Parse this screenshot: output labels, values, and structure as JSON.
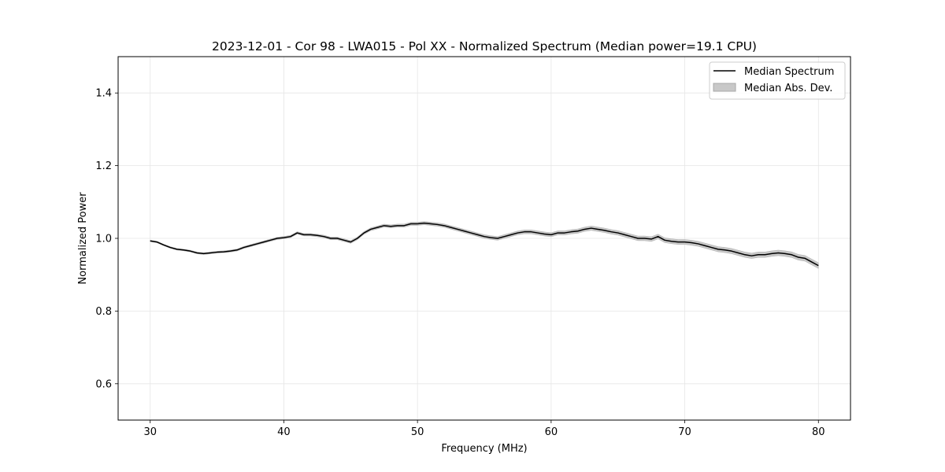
{
  "chart_data": {
    "type": "line",
    "title": "2023-12-01 - Cor 98 - LWA015 - Pol XX - Normalized Spectrum (Median power=19.1 CPU)",
    "xlabel": "Frequency (MHz)",
    "ylabel": "Normalized Power",
    "xlim": [
      27.6,
      82.4
    ],
    "ylim": [
      0.5,
      1.5
    ],
    "xticks": [
      30,
      40,
      50,
      60,
      70,
      80
    ],
    "yticks": [
      0.6,
      0.8,
      1.0,
      1.2,
      1.4
    ],
    "xtick_labels": [
      "30",
      "40",
      "50",
      "60",
      "70",
      "80"
    ],
    "ytick_labels": [
      "0.6",
      "0.8",
      "1.0",
      "1.2",
      "1.4"
    ],
    "grid": true,
    "legend_position": "top-right",
    "legend": [
      "Median Spectrum",
      "Median Abs. Dev."
    ],
    "series": [
      {
        "name": "Median Spectrum",
        "color": "#000000",
        "x": [
          30,
          30.5,
          31,
          31.5,
          32,
          32.5,
          33,
          33.5,
          34,
          34.5,
          35,
          35.5,
          36,
          36.5,
          37,
          37.5,
          38,
          38.5,
          39,
          39.5,
          40,
          40.5,
          41,
          41.5,
          42,
          42.5,
          43,
          43.5,
          44,
          44.5,
          45,
          45.5,
          46,
          46.5,
          47,
          47.5,
          48,
          48.5,
          49,
          49.5,
          50,
          50.5,
          51,
          51.5,
          52,
          52.5,
          53,
          53.5,
          54,
          54.5,
          55,
          55.5,
          56,
          56.5,
          57,
          57.5,
          58,
          58.5,
          59,
          59.5,
          60,
          60.5,
          61,
          61.5,
          62,
          62.5,
          63,
          63.5,
          64,
          64.5,
          65,
          65.5,
          66,
          66.5,
          67,
          67.5,
          68,
          68.5,
          69,
          69.5,
          70,
          70.5,
          71,
          71.5,
          72,
          72.5,
          73,
          73.5,
          74,
          74.5,
          75,
          75.5,
          76,
          76.5,
          77,
          77.5,
          78,
          78.5,
          79,
          79.5,
          80
        ],
        "values": [
          0.993,
          0.99,
          0.982,
          0.975,
          0.97,
          0.968,
          0.965,
          0.96,
          0.958,
          0.96,
          0.962,
          0.963,
          0.965,
          0.968,
          0.975,
          0.98,
          0.985,
          0.99,
          0.995,
          1.0,
          1.002,
          1.005,
          1.015,
          1.01,
          1.01,
          1.008,
          1.005,
          1.0,
          1.0,
          0.995,
          0.99,
          1.0,
          1.015,
          1.025,
          1.03,
          1.035,
          1.033,
          1.035,
          1.035,
          1.04,
          1.04,
          1.042,
          1.04,
          1.038,
          1.035,
          1.03,
          1.025,
          1.02,
          1.015,
          1.01,
          1.005,
          1.002,
          1.0,
          1.005,
          1.01,
          1.015,
          1.018,
          1.018,
          1.015,
          1.012,
          1.01,
          1.015,
          1.015,
          1.018,
          1.02,
          1.025,
          1.028,
          1.025,
          1.022,
          1.018,
          1.015,
          1.01,
          1.005,
          1.0,
          1.0,
          0.998,
          1.005,
          0.995,
          0.992,
          0.99,
          0.99,
          0.988,
          0.985,
          0.98,
          0.975,
          0.97,
          0.968,
          0.965,
          0.96,
          0.955,
          0.952,
          0.955,
          0.955,
          0.958,
          0.96,
          0.958,
          0.955,
          0.948,
          0.945,
          0.935,
          0.925
        ]
      }
    ],
    "mad_band": {
      "name": "Median Abs. Dev.",
      "color": "#c8c8c8",
      "half_width_start": 0.002,
      "half_width_end": 0.008
    }
  }
}
